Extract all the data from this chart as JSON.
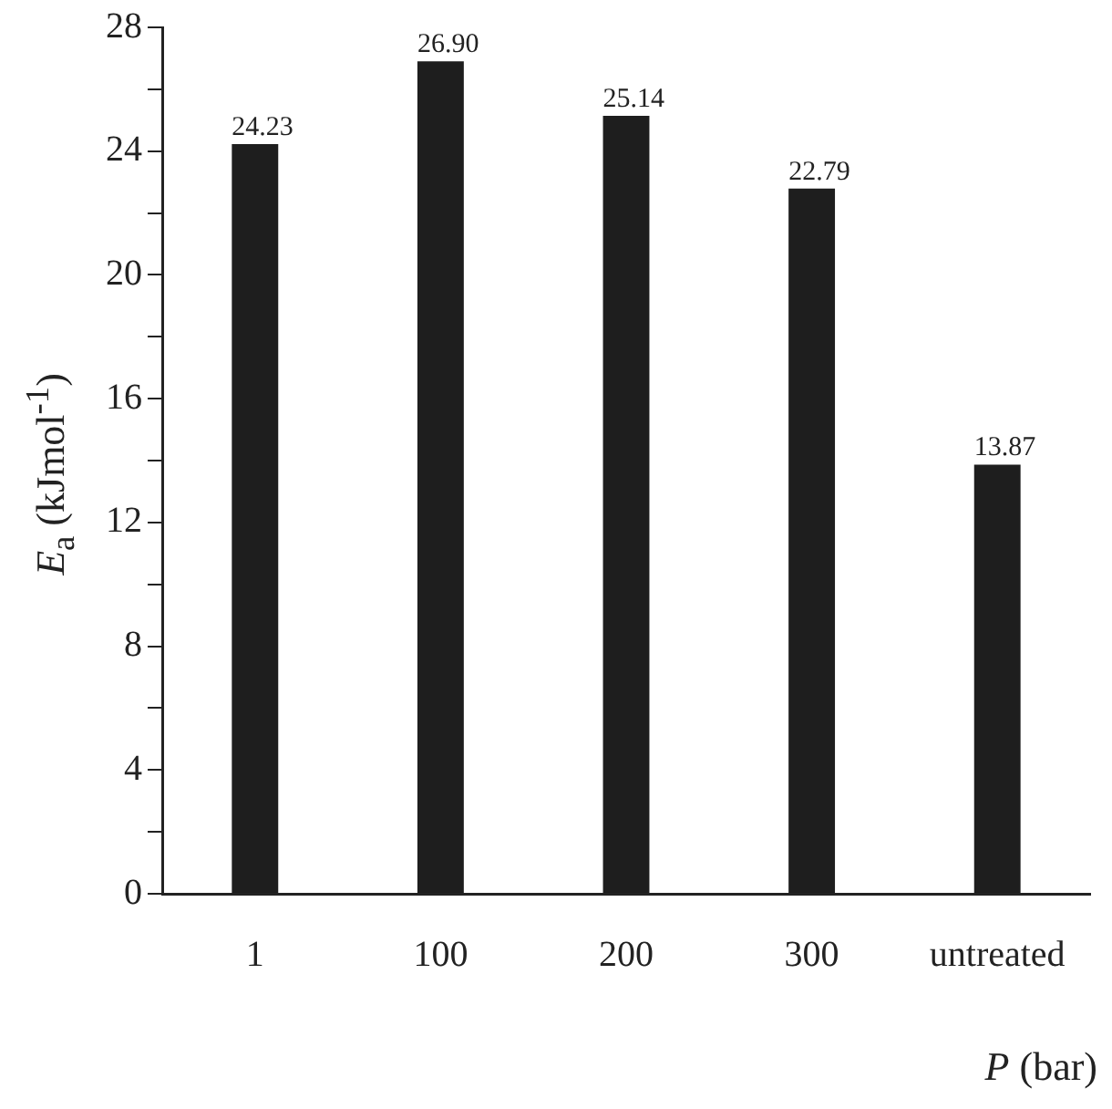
{
  "chart_data": {
    "type": "bar",
    "categories": [
      "1",
      "100",
      "200",
      "300",
      "untreated"
    ],
    "values": [
      24.23,
      26.9,
      25.14,
      22.79,
      13.87
    ],
    "color": "#1e1e1e",
    "value_labels": [
      "24.23",
      "26.90",
      "25.14",
      "22.79",
      "13.87"
    ],
    "ylim": [
      0,
      28
    ],
    "yticks": [
      0,
      {
        "value": 2,
        "label": null
      },
      4,
      {
        "value": 6,
        "label": null
      },
      8,
      {
        "value": 10,
        "label": null
      },
      12,
      {
        "value": 14,
        "label": null
      },
      16,
      {
        "value": 18,
        "label": null
      },
      20,
      {
        "value": 22,
        "label": null
      },
      24,
      {
        "value": 26,
        "label": null
      },
      28
    ],
    "ylabel": "E$_{a}$ (kJmol$^{-1}$)",
    "xlabel": "P (bar)",
    "grid": false,
    "legend": false
  }
}
